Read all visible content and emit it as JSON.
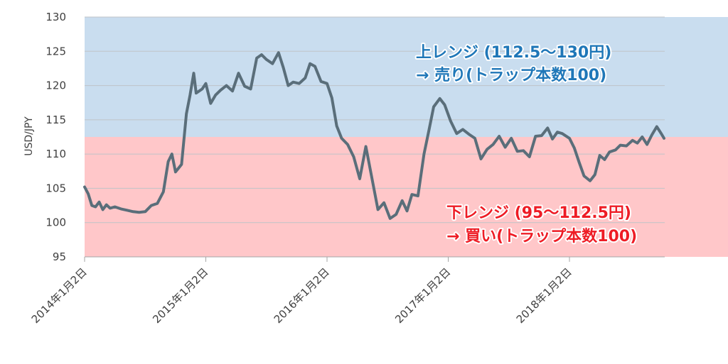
{
  "chart_data": {
    "type": "line",
    "ylabel": "USD/JPY",
    "xlabel": "",
    "ylim": [
      95,
      130
    ],
    "yticks": [
      95,
      100,
      105,
      110,
      115,
      120,
      125,
      130
    ],
    "ytick_labels": [
      "95",
      "100",
      "105",
      "110",
      "115",
      "120",
      "125",
      "130"
    ],
    "xlim": [
      2014.0,
      2019.0
    ],
    "xticks": [
      {
        "x": 2014.0,
        "label": "2014年1月2日"
      },
      {
        "x": 2015.0,
        "label": "2015年1月2日"
      },
      {
        "x": 2016.0,
        "label": "2016年1月2日"
      },
      {
        "x": 2017.0,
        "label": "2017年1月2日"
      },
      {
        "x": 2018.0,
        "label": "2018年1月2日"
      }
    ],
    "grid": true,
    "zones": [
      {
        "from": 112.5,
        "to": 130,
        "color": "#c9ddef",
        "label_lines": [
          "上レンジ (112.5～130円)",
          "→ 売り(トラップ本数100)"
        ],
        "label_color": "#1f77b8"
      },
      {
        "from": 95,
        "to": 112.5,
        "color": "#ffc7c9",
        "label_lines": [
          "下レンジ (95～112.5円)",
          "→ 買い(トラップ本数100)"
        ],
        "label_color": "#ee1c25"
      }
    ],
    "series": [
      {
        "color": "#5a6e7a",
        "points": [
          [
            2014.0,
            105.2
          ],
          [
            2014.03,
            104.2
          ],
          [
            2014.06,
            102.5
          ],
          [
            2014.09,
            102.3
          ],
          [
            2014.12,
            103.0
          ],
          [
            2014.15,
            101.9
          ],
          [
            2014.18,
            102.6
          ],
          [
            2014.21,
            102.1
          ],
          [
            2014.25,
            102.3
          ],
          [
            2014.3,
            102.0
          ],
          [
            2014.35,
            101.8
          ],
          [
            2014.4,
            101.6
          ],
          [
            2014.45,
            101.5
          ],
          [
            2014.5,
            101.6
          ],
          [
            2014.55,
            102.5
          ],
          [
            2014.6,
            102.8
          ],
          [
            2014.65,
            104.5
          ],
          [
            2014.69,
            108.9
          ],
          [
            2014.72,
            110.0
          ],
          [
            2014.75,
            107.4
          ],
          [
            2014.8,
            108.5
          ],
          [
            2014.84,
            115.9
          ],
          [
            2014.87,
            118.6
          ],
          [
            2014.9,
            121.8
          ],
          [
            2014.92,
            118.9
          ],
          [
            2014.97,
            119.5
          ],
          [
            2015.0,
            120.3
          ],
          [
            2015.04,
            117.4
          ],
          [
            2015.08,
            118.6
          ],
          [
            2015.12,
            119.3
          ],
          [
            2015.17,
            120.0
          ],
          [
            2015.22,
            119.2
          ],
          [
            2015.27,
            121.8
          ],
          [
            2015.32,
            119.9
          ],
          [
            2015.37,
            119.5
          ],
          [
            2015.42,
            124.0
          ],
          [
            2015.46,
            124.5
          ],
          [
            2015.5,
            123.8
          ],
          [
            2015.55,
            123.2
          ],
          [
            2015.6,
            124.8
          ],
          [
            2015.64,
            122.6
          ],
          [
            2015.68,
            120.0
          ],
          [
            2015.72,
            120.5
          ],
          [
            2015.77,
            120.3
          ],
          [
            2015.82,
            121.1
          ],
          [
            2015.86,
            123.2
          ],
          [
            2015.9,
            122.8
          ],
          [
            2015.95,
            120.6
          ],
          [
            2016.0,
            120.3
          ],
          [
            2016.04,
            118.2
          ],
          [
            2016.08,
            114.1
          ],
          [
            2016.12,
            112.3
          ],
          [
            2016.17,
            111.4
          ],
          [
            2016.22,
            109.6
          ],
          [
            2016.27,
            106.4
          ],
          [
            2016.32,
            111.1
          ],
          [
            2016.37,
            106.5
          ],
          [
            2016.42,
            101.9
          ],
          [
            2016.47,
            102.9
          ],
          [
            2016.52,
            100.6
          ],
          [
            2016.57,
            101.2
          ],
          [
            2016.62,
            103.2
          ],
          [
            2016.66,
            101.7
          ],
          [
            2016.7,
            104.1
          ],
          [
            2016.75,
            103.9
          ],
          [
            2016.8,
            110.0
          ],
          [
            2016.84,
            113.4
          ],
          [
            2016.88,
            116.9
          ],
          [
            2016.93,
            118.1
          ],
          [
            2016.97,
            117.2
          ],
          [
            2017.02,
            114.8
          ],
          [
            2017.07,
            113.0
          ],
          [
            2017.12,
            113.6
          ],
          [
            2017.17,
            112.9
          ],
          [
            2017.22,
            112.3
          ],
          [
            2017.27,
            109.3
          ],
          [
            2017.32,
            110.7
          ],
          [
            2017.37,
            111.4
          ],
          [
            2017.42,
            112.6
          ],
          [
            2017.47,
            111.0
          ],
          [
            2017.52,
            112.3
          ],
          [
            2017.57,
            110.4
          ],
          [
            2017.62,
            110.5
          ],
          [
            2017.67,
            109.6
          ],
          [
            2017.72,
            112.6
          ],
          [
            2017.77,
            112.7
          ],
          [
            2017.82,
            113.8
          ],
          [
            2017.86,
            112.2
          ],
          [
            2017.9,
            113.2
          ],
          [
            2017.94,
            113.0
          ],
          [
            2018.0,
            112.3
          ],
          [
            2018.04,
            110.9
          ],
          [
            2018.08,
            108.8
          ],
          [
            2018.12,
            106.8
          ],
          [
            2018.17,
            106.1
          ],
          [
            2018.21,
            107.0
          ],
          [
            2018.25,
            109.8
          ],
          [
            2018.29,
            109.2
          ],
          [
            2018.33,
            110.3
          ],
          [
            2018.38,
            110.6
          ],
          [
            2018.42,
            111.3
          ],
          [
            2018.47,
            111.2
          ],
          [
            2018.52,
            112.0
          ],
          [
            2018.56,
            111.6
          ],
          [
            2018.6,
            112.5
          ],
          [
            2018.64,
            111.4
          ],
          [
            2018.68,
            112.8
          ],
          [
            2018.72,
            114.0
          ],
          [
            2018.76,
            112.9
          ],
          [
            2018.78,
            112.3
          ]
        ]
      }
    ]
  }
}
